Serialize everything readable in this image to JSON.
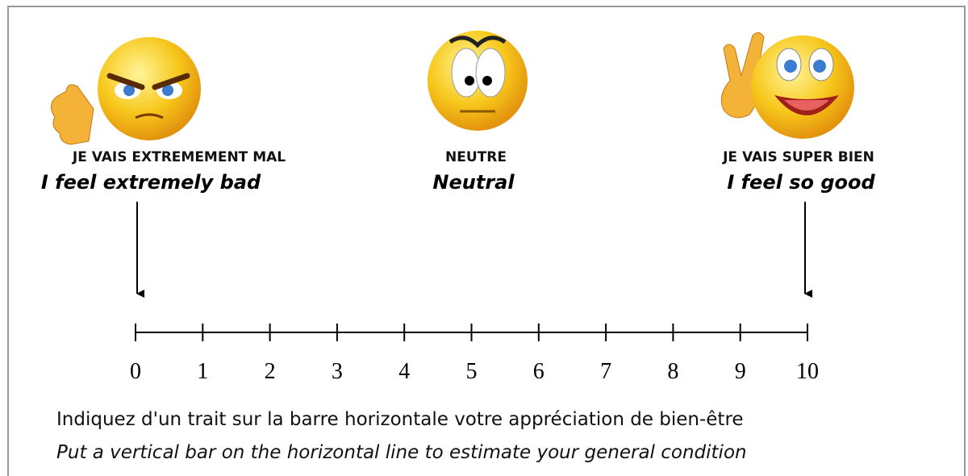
{
  "anchors": [
    {
      "label_fr": "JE VAIS EXTREMEMENT MAL",
      "label_en": "I feel extremely bad"
    },
    {
      "label_fr": "NEUTRE",
      "label_en": "Neutral"
    },
    {
      "label_fr": "JE VAIS SUPER BIEN",
      "label_en": "I feel so good"
    }
  ],
  "scale": {
    "ticks": [
      0,
      1,
      2,
      3,
      4,
      5,
      6,
      7,
      8,
      9,
      10
    ]
  },
  "instructions": {
    "fr": "Indiquez d'un trait sur la barre horizontale votre appréciation de bien-être",
    "en": "Put a vertical bar on the horizontal line to estimate your general condition"
  }
}
